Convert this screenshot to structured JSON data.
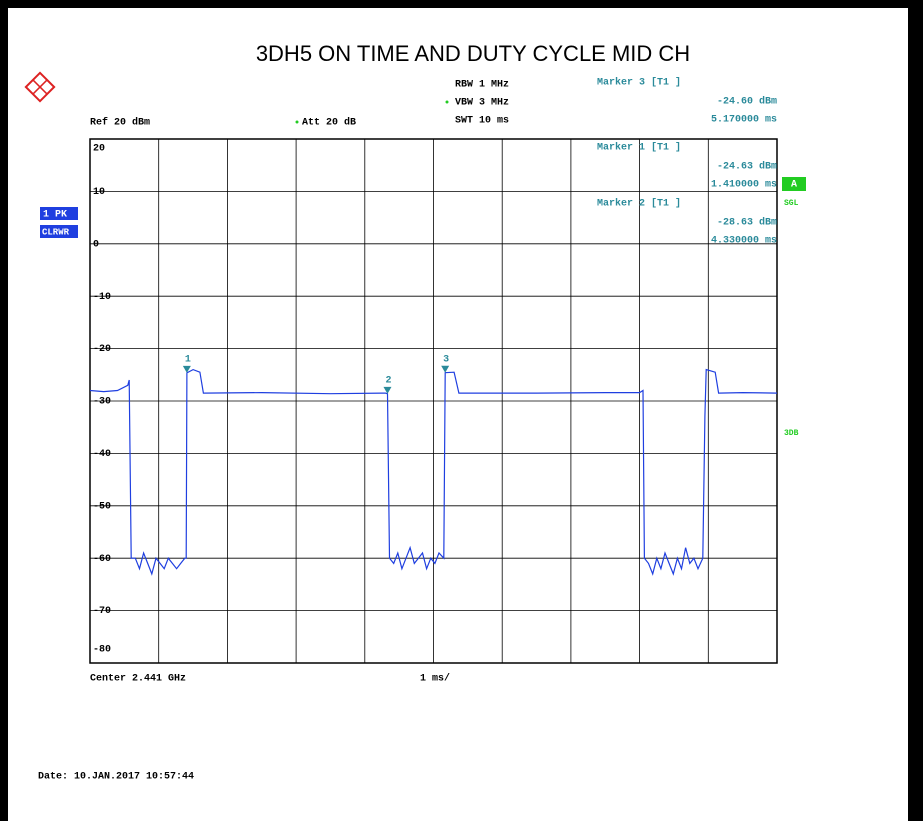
{
  "chart_data": {
    "type": "line",
    "title": "3DH5 ON TIME AND DUTY CYCLE MID CH",
    "settings": {
      "rbw": "RBW 1 MHz",
      "vbw": "VBW 3 MHz",
      "swt": "SWT 10 ms",
      "ref": "Ref 20 dBm",
      "att": "Att 20 dB"
    },
    "trace_labels": {
      "trace": "1 PK",
      "mode": "CLRWR",
      "a": "A",
      "sgl": "SGL",
      "db": "3DB"
    },
    "center": "Center 2.441 GHz",
    "span": "1 ms/",
    "date": "Date: 10.JAN.2017 10:57:44",
    "xlim": [
      0,
      10
    ],
    "ylim": [
      -80,
      20
    ],
    "yticks": [
      20,
      10,
      0,
      -10,
      -20,
      -30,
      -40,
      -50,
      -60,
      -70,
      -80
    ],
    "grid": true,
    "series": [
      {
        "name": "1 PK",
        "color": "#1f3fe0",
        "x": [
          0,
          0.2,
          0.4,
          0.55,
          0.57,
          0.6,
          0.66,
          0.72,
          0.78,
          0.84,
          0.9,
          0.96,
          1.02,
          1.08,
          1.14,
          1.2,
          1.26,
          1.32,
          1.38,
          1.4,
          1.41,
          1.5,
          1.6,
          1.65,
          2.5,
          3.5,
          4.3,
          4.33,
          4.36,
          4.42,
          4.48,
          4.54,
          4.6,
          4.66,
          4.72,
          4.78,
          4.84,
          4.9,
          4.96,
          5.02,
          5.08,
          5.15,
          5.17,
          5.3,
          5.37,
          6.5,
          7.5,
          8.0,
          8.05,
          8.07,
          8.13,
          8.19,
          8.25,
          8.31,
          8.37,
          8.43,
          8.49,
          8.55,
          8.61,
          8.67,
          8.73,
          8.79,
          8.85,
          8.92,
          8.95,
          8.97,
          9.1,
          9.15,
          9.5,
          10
        ],
        "values": [
          -28,
          -28.2,
          -28,
          -27,
          -26,
          -60,
          -60,
          -62,
          -59,
          -61,
          -63,
          -60,
          -61,
          -62,
          -60,
          -61,
          -62,
          -61,
          -60,
          -60,
          -24.63,
          -24,
          -24.5,
          -28.5,
          -28.4,
          -28.6,
          -28.5,
          -28.63,
          -60,
          -61,
          -59,
          -62,
          -60,
          -58,
          -61,
          -60,
          -59,
          -62,
          -60,
          -61,
          -59,
          -60,
          -24.6,
          -24.5,
          -28.5,
          -28.5,
          -28.4,
          -28.4,
          -28,
          -60,
          -61,
          -63,
          -60,
          -62,
          -59,
          -61,
          -63,
          -60,
          -62,
          -58,
          -61,
          -60,
          -62,
          -60,
          -33,
          -24,
          -24.5,
          -28.5,
          -28.4,
          -28.5
        ]
      }
    ],
    "markers": [
      {
        "label": "1",
        "x": 1.41,
        "y": -24.63,
        "header": "Marker 1 [T1 ]",
        "level": "-24.63 dBm",
        "time": "1.410000 ms"
      },
      {
        "label": "2",
        "x": 4.33,
        "y": -28.63,
        "header": "Marker 2 [T1 ]",
        "level": "-28.63 dBm",
        "time": "4.330000 ms"
      },
      {
        "label": "3",
        "x": 5.17,
        "y": -24.6,
        "header": "Marker 3 [T1 ]",
        "level": "-24.60 dBm",
        "time": "5.170000 ms"
      }
    ]
  }
}
